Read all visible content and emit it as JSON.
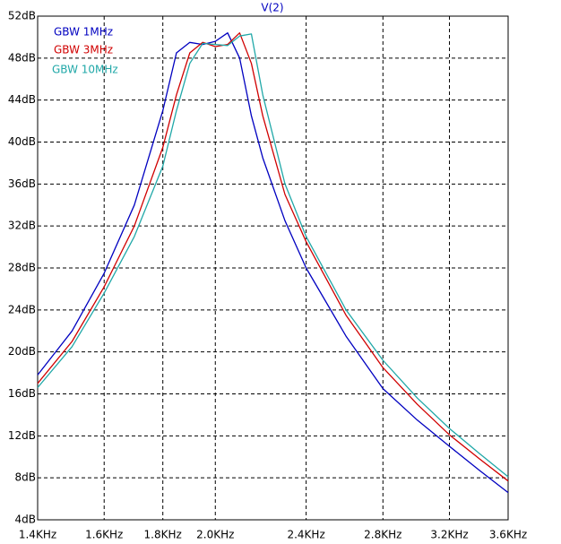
{
  "chart_data": {
    "type": "line",
    "title": "V(2)",
    "x": [
      1.4,
      1.5,
      1.6,
      1.7,
      1.8,
      1.85,
      1.9,
      1.95,
      2.0,
      2.05,
      2.1,
      2.15,
      2.2,
      2.3,
      2.4,
      2.6,
      2.8,
      3.0,
      3.2,
      3.4,
      3.6
    ],
    "series": [
      {
        "name": "GBW 1MHz",
        "color": "#0000c0",
        "values": [
          17.8,
          22,
          27.5,
          34,
          43,
          48.5,
          49.5,
          49.3,
          49.6,
          50.4,
          48,
          42.5,
          38.5,
          32.5,
          28,
          21.5,
          16.5,
          13.5,
          11,
          8.7,
          6.6
        ]
      },
      {
        "name": "GBW 3MHz",
        "color": "#d00000",
        "values": [
          17.0,
          21,
          26.2,
          32,
          39.5,
          44.5,
          48.5,
          49.5,
          49.1,
          49.3,
          50.4,
          47.5,
          42.5,
          35,
          30.5,
          23.5,
          18.5,
          15,
          12.1,
          9.8,
          7.7
        ]
      },
      {
        "name": "GBW 10MHz",
        "color": "#20a8a8",
        "values": [
          16.6,
          20.5,
          25.6,
          31,
          37.7,
          43,
          47.5,
          49.4,
          49.3,
          49.2,
          50.1,
          50.3,
          44.5,
          36,
          31,
          24,
          19.2,
          15.6,
          12.7,
          10.3,
          8.1
        ]
      }
    ],
    "xlim": [
      1.4,
      3.6
    ],
    "xscale": "log",
    "xticks": [
      {
        "value": 1.4,
        "label": "1.4KHz"
      },
      {
        "value": 1.6,
        "label": "1.6KHz"
      },
      {
        "value": 1.8,
        "label": "1.8KHz"
      },
      {
        "value": 2.0,
        "label": "2.0KHz"
      },
      {
        "value": 2.4,
        "label": "2.4KHz"
      },
      {
        "value": 2.8,
        "label": "2.8KHz"
      },
      {
        "value": 3.2,
        "label": "3.2KHz"
      },
      {
        "value": 3.6,
        "label": "3.6KHz"
      }
    ],
    "ylim": [
      4,
      52
    ],
    "yticks": [
      {
        "value": 4,
        "label": "4dB"
      },
      {
        "value": 8,
        "label": "8dB"
      },
      {
        "value": 12,
        "label": "12dB"
      },
      {
        "value": 16,
        "label": "16dB"
      },
      {
        "value": 20,
        "label": "20dB"
      },
      {
        "value": 24,
        "label": "24dB"
      },
      {
        "value": 28,
        "label": "28dB"
      },
      {
        "value": 32,
        "label": "32dB"
      },
      {
        "value": 36,
        "label": "36dB"
      },
      {
        "value": 40,
        "label": "40dB"
      },
      {
        "value": 44,
        "label": "44dB"
      },
      {
        "value": 48,
        "label": "48dB"
      },
      {
        "value": 52,
        "label": "52dB"
      }
    ],
    "grid": true
  }
}
